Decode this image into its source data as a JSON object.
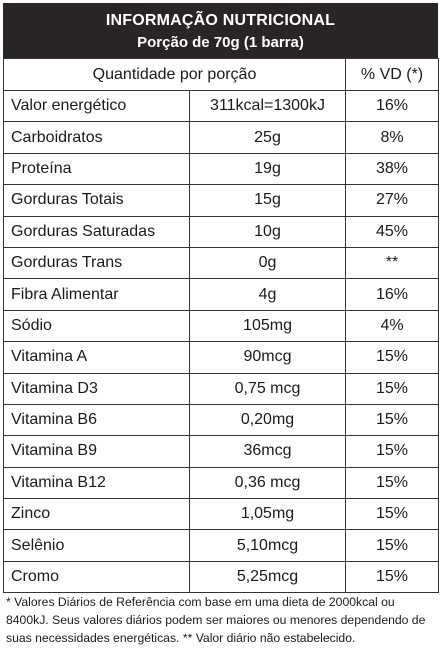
{
  "header": {
    "title": "INFORMAÇÃO NUTRICIONAL",
    "subtitle": "Porção de 70g (1 barra)"
  },
  "columns": {
    "quantity": "Quantidade por porção",
    "dv": "% VD (*)"
  },
  "rows": [
    {
      "name": "Valor energético",
      "qty": "311kcal=1300kJ",
      "dv": "16%"
    },
    {
      "name": "Carboidratos",
      "qty": "25g",
      "dv": "8%"
    },
    {
      "name": "Proteína",
      "qty": "19g",
      "dv": "38%"
    },
    {
      "name": "Gorduras Totais",
      "qty": "15g",
      "dv": "27%"
    },
    {
      "name": "Gorduras Saturadas",
      "qty": "10g",
      "dv": "45%"
    },
    {
      "name": "Gorduras Trans",
      "qty": "0g",
      "dv": "**"
    },
    {
      "name": "Fibra Alimentar",
      "qty": "4g",
      "dv": "16%"
    },
    {
      "name": "Sódio",
      "qty": "105mg",
      "dv": "4%"
    },
    {
      "name": "Vitamina A",
      "qty": "90mcg",
      "dv": "15%"
    },
    {
      "name": "Vitamina D3",
      "qty": "0,75 mcg",
      "dv": "15%"
    },
    {
      "name": "Vitamina B6",
      "qty": "0,20mg",
      "dv": "15%"
    },
    {
      "name": "Vitamina B9",
      "qty": "36mcg",
      "dv": "15%"
    },
    {
      "name": "Vitamina B12",
      "qty": "0,36 mcg",
      "dv": "15%"
    },
    {
      "name": "Zinco",
      "qty": "1,05mg",
      "dv": "15%"
    },
    {
      "name": "Selênio",
      "qty": "5,10mcg",
      "dv": "15%"
    },
    {
      "name": "Cromo",
      "qty": "5,25mcg",
      "dv": "15%"
    }
  ],
  "footnote": "* Valores Diários de Referência com base em uma dieta de 2000kcal ou 8400kJ. Seus valores diários podem ser maiores ou menores dependendo de suas necessidades energéticas. ** Valor diário não estabelecido."
}
